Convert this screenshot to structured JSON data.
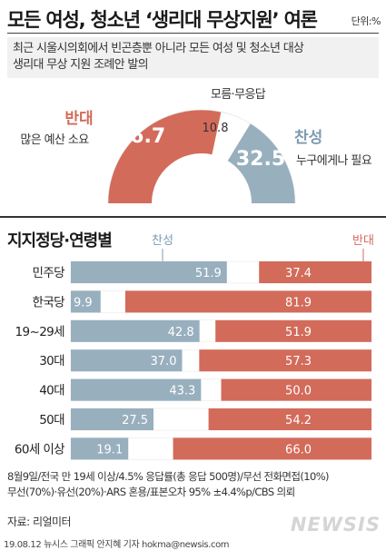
{
  "header": {
    "title": "모든 여성, 청소년 ‘생리대 무상지원’ 여론",
    "unit": "단위:%",
    "subtitle_lines": [
      "최근 시울시의회에서 빈곤층뿐 아니라 모든 여성 및 청소년 대상",
      "생리대 무상 지원 조례안 발의"
    ]
  },
  "colors": {
    "oppose": "#d36b5a",
    "support": "#98afbe",
    "neutral": "#ffffff"
  },
  "chart_data": [
    {
      "type": "pie",
      "categories": [
        "반대",
        "모름·무응답",
        "찬성"
      ],
      "values": [
        56.7,
        10.8,
        32.5
      ],
      "slice_notes": [
        "많은 예산 소요",
        "",
        "누구에게나 필요"
      ]
    },
    {
      "type": "bar",
      "title": "지지정당·연령별",
      "series_labels": [
        "찬성",
        "반대"
      ],
      "categories": [
        "민주당",
        "한국당",
        "19~29세",
        "30대",
        "40대",
        "50대",
        "60세 이상"
      ],
      "series": [
        {
          "name": "찬성",
          "values": [
            51.9,
            9.9,
            42.8,
            37.0,
            43.3,
            27.5,
            19.1
          ]
        },
        {
          "name": "반대",
          "values": [
            37.4,
            81.9,
            51.9,
            57.3,
            50.0,
            54.2,
            66.0
          ]
        }
      ],
      "ylim": [
        0,
        100
      ]
    }
  ],
  "footnote_lines": [
    "8월9일/전국 만 19세 이상/4.5% 응답률(총 응답 500명)/무선 전화면접(10%)",
    "무선(70%)·유선(20%)·ARS 혼용/표본오차 95% ±4.4%p/CBS 의뢰"
  ],
  "source": "자료: 리얼미터",
  "credit": "19.08.12 뉴시스 그래픽 안지혜 기자 hokma@newsis.com",
  "logo": "NEWSIS"
}
